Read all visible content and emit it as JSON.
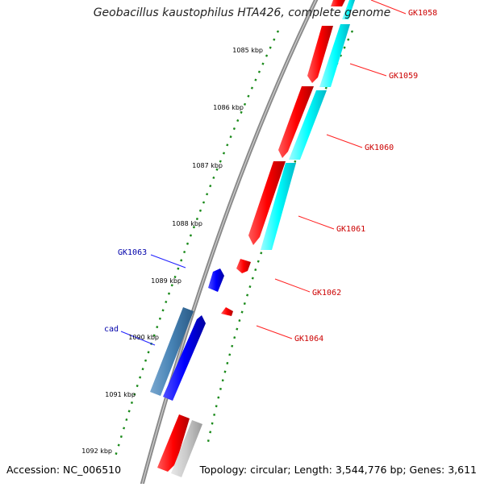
{
  "title": "Geobacillus kaustophilus HTA426, complete genome",
  "footer": {
    "accession": "Accession: NC_006510",
    "summary": "Topology: circular; Length: 3,544,776 bp; Genes: 3,611"
  },
  "ruler": [
    {
      "label": "1085 kbp"
    },
    {
      "label": "1086 kbp"
    },
    {
      "label": "1087 kbp"
    },
    {
      "label": "1088 kbp"
    },
    {
      "label": "1089 kbp"
    },
    {
      "label": "1090 kbp"
    },
    {
      "label": "1091 kbp"
    },
    {
      "label": "1092 kbp"
    }
  ],
  "gene_labels": [
    {
      "text": "GK1058",
      "color": "#cc0000"
    },
    {
      "text": "GK1059",
      "color": "#cc0000"
    },
    {
      "text": "GK1060",
      "color": "#cc0000"
    },
    {
      "text": "GK1061",
      "color": "#cc0000"
    },
    {
      "text": "GK1062",
      "color": "#cc0000"
    },
    {
      "text": "GK1064",
      "color": "#cc0000"
    },
    {
      "text": "GK1063",
      "color": "#0000aa"
    },
    {
      "text": "cad",
      "color": "#0000aa"
    }
  ],
  "colors": {
    "forward_cds": "#ff0000",
    "forward_rna": "#00ffff",
    "reverse_cds": "#0000ff",
    "reverse_rna": "#4682b4",
    "pseudo": "#c8c8c8",
    "backbone": "#808080",
    "ticks": "#1a8a1a"
  }
}
